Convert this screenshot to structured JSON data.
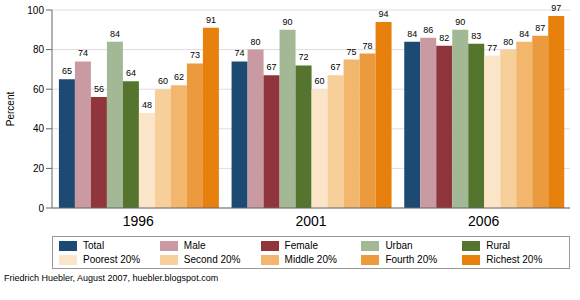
{
  "chart_data": {
    "type": "bar",
    "y_label": "Percent",
    "categories": [
      "1996",
      "2001",
      "2006"
    ],
    "series": [
      {
        "name": "Total",
        "color": "#1d4a73",
        "values": [
          65,
          74,
          84
        ]
      },
      {
        "name": "Male",
        "color": "#c99aa2",
        "values": [
          74,
          80,
          86
        ]
      },
      {
        "name": "Female",
        "color": "#90353b",
        "values": [
          56,
          67,
          82
        ]
      },
      {
        "name": "Urban",
        "color": "#a3b995",
        "values": [
          84,
          90,
          90
        ]
      },
      {
        "name": "Rural",
        "color": "#55752f",
        "values": [
          64,
          72,
          83
        ]
      },
      {
        "name": "Poorest 20%",
        "color": "#fbe5c8",
        "values": [
          48,
          60,
          77
        ]
      },
      {
        "name": "Second 20%",
        "color": "#f6cf9b",
        "values": [
          60,
          67,
          80
        ]
      },
      {
        "name": "Middle 20%",
        "color": "#f2b76d",
        "values": [
          62,
          75,
          84
        ]
      },
      {
        "name": "Fourth 20%",
        "color": "#eb9a3e",
        "values": [
          73,
          78,
          87
        ]
      },
      {
        "name": "Richest 20%",
        "color": "#e8800e",
        "values": [
          91,
          94,
          97
        ]
      }
    ],
    "ylim": [
      0,
      100
    ],
    "yticks": [
      0,
      20,
      40,
      60,
      80,
      100
    ],
    "grid": true,
    "data_labels": true,
    "legend": "bottom",
    "annotations": [
      "Friedrich Huebler, August 2007, huebler.blogspot.com"
    ]
  }
}
